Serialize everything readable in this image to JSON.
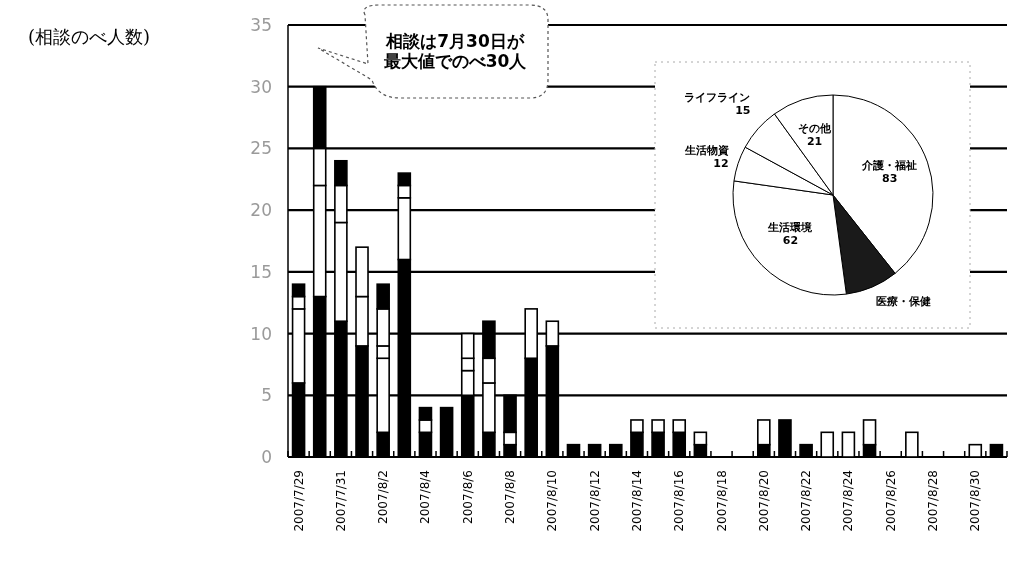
{
  "chart_data": [
    {
      "type": "bar",
      "ylabel": "(相談のべ人数)",
      "annotations": [
        "相談は7月30日が最大値でのべ30人"
      ],
      "stacked": true,
      "grid": "y",
      "ylim": [
        0,
        35
      ],
      "yticks": [
        0,
        5,
        10,
        15,
        20,
        25,
        30,
        35
      ],
      "categories": [
        "2007/7/29",
        null,
        "2007/7/31",
        null,
        "2007/8/2",
        null,
        "2007/8/4",
        null,
        "2007/8/6",
        null,
        "2007/8/8",
        null,
        "2007/8/10",
        null,
        "2007/8/12",
        null,
        "2007/8/14",
        null,
        "2007/8/16",
        null,
        "2007/8/18",
        null,
        "2007/8/20",
        null,
        "2007/8/22",
        null,
        "2007/8/24",
        null,
        "2007/8/26",
        null,
        "2007/8/28",
        null,
        "2007/8/30",
        null
      ],
      "series": [
        {
          "color": "#000000",
          "values": [
            6,
            13,
            11,
            9,
            2,
            16,
            2,
            4,
            5,
            2,
            1,
            8,
            9,
            1,
            1,
            1,
            2,
            2,
            2,
            1,
            null,
            null,
            1,
            3,
            1,
            null,
            null,
            1,
            null,
            null,
            null,
            null,
            null,
            1
          ]
        },
        {
          "color": "#ffffff",
          "values": [
            6,
            9,
            8,
            4,
            6,
            5,
            1,
            null,
            2,
            4,
            1,
            4,
            2,
            null,
            null,
            null,
            1,
            1,
            1,
            1,
            null,
            null,
            2,
            null,
            null,
            2,
            2,
            2,
            null,
            2,
            null,
            null,
            1,
            null
          ]
        },
        {
          "color": "#ffffff",
          "values": [
            1,
            3,
            3,
            4,
            1,
            1,
            null,
            null,
            1,
            2,
            null,
            null,
            null,
            null,
            null,
            null,
            null,
            null,
            null,
            null,
            null,
            null,
            null,
            null,
            null,
            null,
            null,
            null,
            null,
            null,
            null,
            null,
            null,
            null
          ]
        },
        {
          "color": "#ffffff",
          "values": [
            null,
            null,
            null,
            null,
            3,
            null,
            null,
            null,
            2,
            null,
            null,
            null,
            null,
            null,
            null,
            null,
            null,
            null,
            null,
            null,
            null,
            null,
            null,
            null,
            null,
            null,
            null,
            null,
            null,
            null,
            null,
            null,
            null,
            null
          ]
        },
        {
          "color": "#000000",
          "values": [
            1,
            5,
            2,
            null,
            2,
            1,
            1,
            null,
            null,
            3,
            3,
            null,
            null,
            null,
            null,
            null,
            null,
            null,
            null,
            null,
            null,
            null,
            null,
            null,
            null,
            null,
            null,
            null,
            null,
            null,
            null,
            null,
            null,
            null
          ]
        }
      ]
    },
    {
      "type": "pie",
      "categories": [
        "介護・福祉",
        "医療・保健",
        "生活環境",
        "生活物資",
        "ライフライン",
        "その他"
      ],
      "values": [
        83,
        18,
        62,
        12,
        15,
        21
      ],
      "colors": [
        "#ffffff",
        "#1a1a1a",
        "#ffffff",
        "#ffffff",
        "#ffffff",
        "#ffffff"
      ],
      "value_labels": [
        "83",
        null,
        "62",
        "12",
        "15",
        "21"
      ]
    }
  ]
}
